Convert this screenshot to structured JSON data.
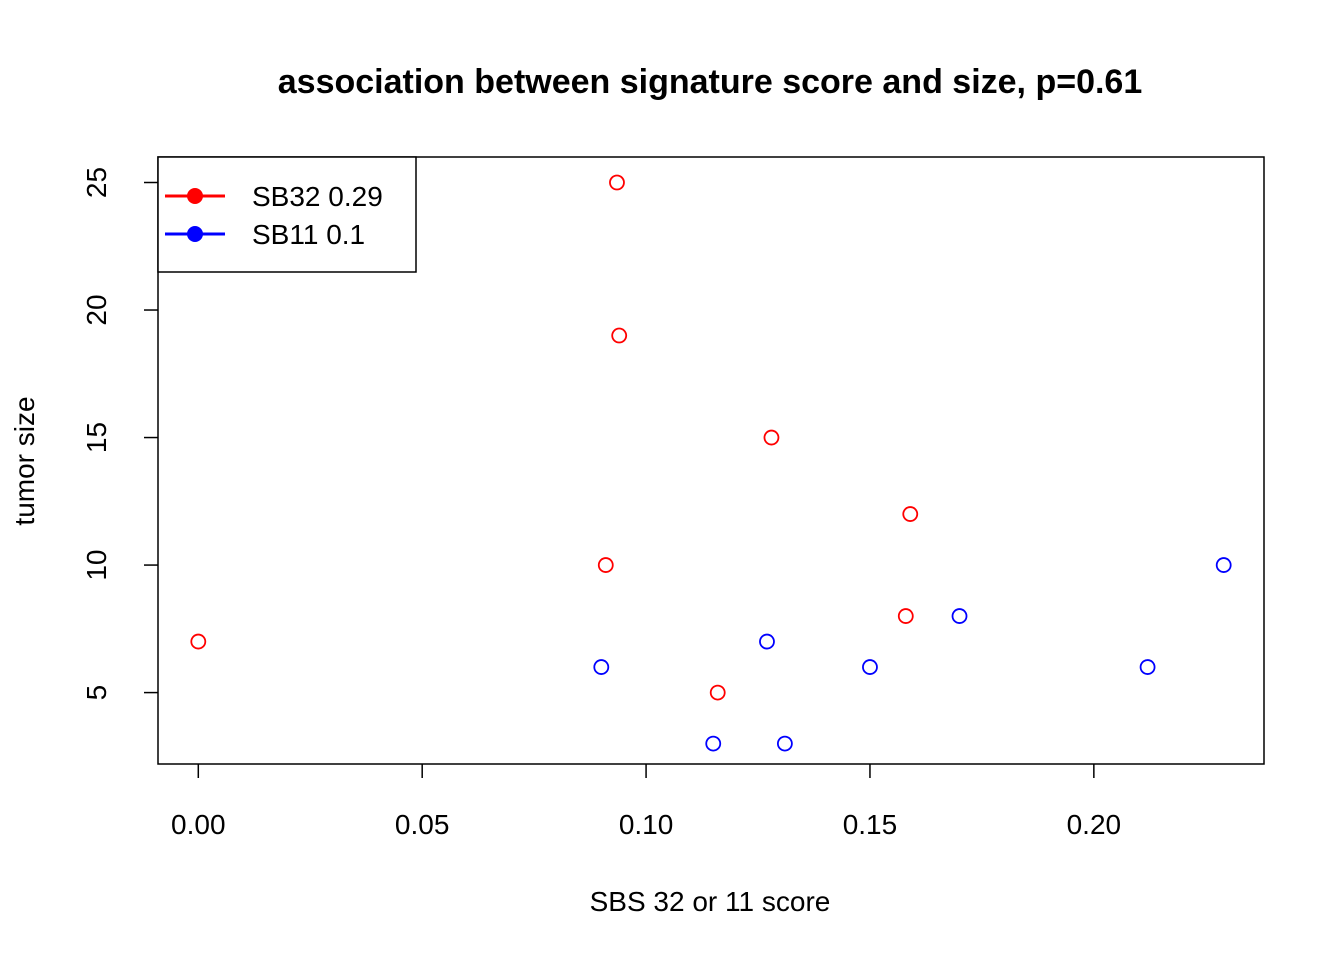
{
  "chart_data": {
    "type": "scatter",
    "title": "association between signature score and size, p=0.61",
    "xlabel": "SBS 32 or 11 score",
    "ylabel": "tumor size",
    "xlim": [
      -0.009,
      0.238
    ],
    "ylim": [
      2.2,
      26.0
    ],
    "x_ticks": [
      {
        "value": 0.0,
        "label": "0.00"
      },
      {
        "value": 0.05,
        "label": "0.05"
      },
      {
        "value": 0.1,
        "label": "0.10"
      },
      {
        "value": 0.15,
        "label": "0.15"
      },
      {
        "value": 0.2,
        "label": "0.20"
      }
    ],
    "y_ticks": [
      {
        "value": 5,
        "label": "5"
      },
      {
        "value": 10,
        "label": "10"
      },
      {
        "value": 15,
        "label": "15"
      },
      {
        "value": 20,
        "label": "20"
      },
      {
        "value": 25,
        "label": "25"
      }
    ],
    "grid": false,
    "legend_position": "top-left",
    "series": [
      {
        "name": "SB32 0.29",
        "color": "#ff0000",
        "points": [
          {
            "x": 0.0,
            "y": 7
          },
          {
            "x": 0.091,
            "y": 10
          },
          {
            "x": 0.0935,
            "y": 25
          },
          {
            "x": 0.094,
            "y": 19
          },
          {
            "x": 0.116,
            "y": 5
          },
          {
            "x": 0.128,
            "y": 15
          },
          {
            "x": 0.158,
            "y": 8
          },
          {
            "x": 0.159,
            "y": 12
          }
        ]
      },
      {
        "name": "SB11 0.1",
        "color": "#0000ff",
        "points": [
          {
            "x": 0.09,
            "y": 6
          },
          {
            "x": 0.115,
            "y": 3
          },
          {
            "x": 0.127,
            "y": 7
          },
          {
            "x": 0.131,
            "y": 3
          },
          {
            "x": 0.15,
            "y": 6
          },
          {
            "x": 0.17,
            "y": 8
          },
          {
            "x": 0.212,
            "y": 6
          },
          {
            "x": 0.229,
            "y": 10
          }
        ]
      }
    ]
  }
}
